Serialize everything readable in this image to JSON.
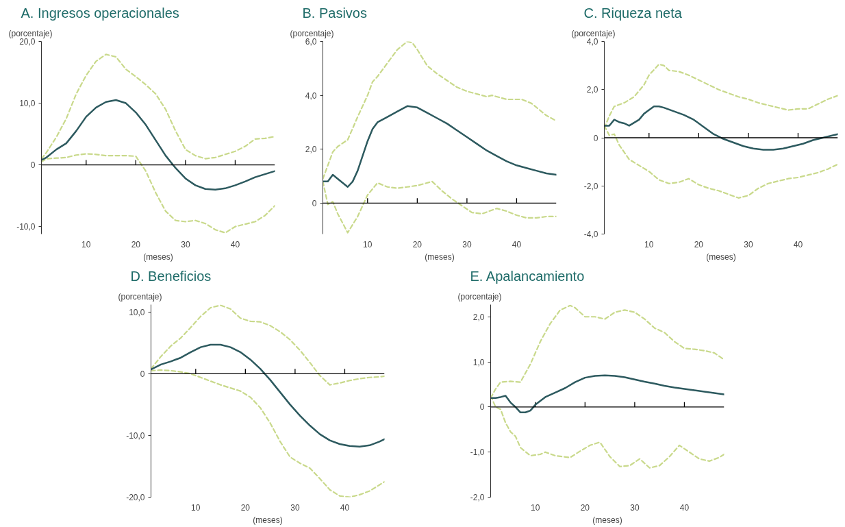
{
  "chart_data": [
    {
      "type": "line",
      "title": "A.     Ingresos operacionales",
      "ylabel": "(porcentaje)",
      "xlabel": "(meses)",
      "xlim": [
        1,
        48
      ],
      "xticks": [
        10,
        20,
        30,
        40
      ],
      "ylim": [
        -11.2,
        20
      ],
      "yticks": [
        {
          "value": -10,
          "label": "-10,0"
        },
        0,
        {
          "value": 10,
          "label": "10,0"
        },
        {
          "value": 20,
          "label": "20,0"
        }
      ],
      "ref_lines": [
        {
          "axis": "y",
          "value": 0,
          "label": null,
          "color": "#000000"
        }
      ],
      "series": [
        {
          "color": "#c9d98b",
          "line_style": "dashed",
          "x": [
            1,
            2,
            4,
            6,
            8,
            10,
            12,
            14,
            16,
            18,
            20,
            22,
            24,
            26,
            28,
            30,
            32,
            34,
            36,
            38,
            40,
            42,
            44,
            46,
            48
          ],
          "values": [
            1.0,
            2.0,
            4.5,
            7.5,
            11.5,
            14.5,
            16.8,
            17.9,
            17.5,
            15.5,
            14.3,
            13.0,
            11.5,
            9.0,
            5.5,
            2.5,
            1.5,
            1.0,
            1.2,
            1.7,
            2.2,
            3.0,
            4.2,
            4.3,
            4.6
          ]
        },
        {
          "color": "#c9d98b",
          "line_style": "dashed",
          "x": [
            1,
            2,
            4,
            6,
            8,
            10,
            12,
            14,
            16,
            18,
            20,
            22,
            24,
            26,
            28,
            30,
            32,
            34,
            36,
            38,
            40,
            42,
            44,
            46,
            48
          ],
          "values": [
            0.5,
            1.0,
            1.1,
            1.2,
            1.6,
            1.8,
            1.7,
            1.5,
            1.5,
            1.5,
            1.4,
            -1.0,
            -4.5,
            -7.5,
            -9.0,
            -9.2,
            -9.0,
            -9.5,
            -10.5,
            -11.0,
            -10.0,
            -9.6,
            -9.2,
            -8.2,
            -6.6
          ]
        },
        {
          "color": "#2d5a5f",
          "line_style": "solid",
          "x": [
            1,
            2,
            4,
            6,
            8,
            10,
            12,
            14,
            16,
            18,
            20,
            22,
            24,
            26,
            28,
            30,
            32,
            34,
            36,
            38,
            40,
            42,
            44,
            46,
            48
          ],
          "values": [
            0.8,
            1.2,
            2.5,
            3.5,
            5.5,
            7.8,
            9.3,
            10.2,
            10.5,
            10.0,
            8.5,
            6.5,
            4.0,
            1.5,
            -0.5,
            -2.2,
            -3.3,
            -3.9,
            -4.0,
            -3.8,
            -3.3,
            -2.7,
            -2.0,
            -1.5,
            -1.0
          ]
        }
      ]
    },
    {
      "type": "line",
      "title": "B.     Pasivos",
      "ylabel": "(porcentaje)",
      "xlabel": "(meses)",
      "xlim": [
        1,
        48
      ],
      "xticks": [
        10,
        20,
        30,
        40
      ],
      "ylim": [
        -1.15,
        6
      ],
      "yticks": [
        0,
        {
          "value": 2,
          "label": "2,0"
        },
        {
          "value": 4,
          "label": "4,0"
        },
        {
          "value": 6,
          "label": "6,0"
        }
      ],
      "ref_lines": [
        {
          "axis": "y",
          "value": 0,
          "label": null,
          "color": "#000000"
        }
      ],
      "series": [
        {
          "color": "#c9d98b",
          "line_style": "dashed",
          "x": [
            1,
            2,
            3,
            4,
            6,
            8,
            10,
            11,
            12,
            14,
            16,
            18,
            19,
            20,
            22,
            24,
            26,
            28,
            30,
            32,
            34,
            35,
            38,
            41,
            43,
            46,
            48
          ],
          "values": [
            0.9,
            1.4,
            1.9,
            2.1,
            2.35,
            3.2,
            4.0,
            4.5,
            4.7,
            5.2,
            5.7,
            6.0,
            5.95,
            5.7,
            5.1,
            4.8,
            4.55,
            4.3,
            4.15,
            4.05,
            3.95,
            4.0,
            3.85,
            3.85,
            3.7,
            3.25,
            3.05
          ]
        },
        {
          "color": "#c9d98b",
          "line_style": "dashed",
          "x": [
            1,
            2,
            3,
            4,
            6,
            8,
            10,
            12,
            14,
            16,
            18,
            20,
            23,
            25,
            27,
            29,
            31,
            33,
            36,
            38,
            40,
            42,
            44,
            46,
            48
          ],
          "values": [
            0.8,
            -0.05,
            0.05,
            -0.4,
            -1.1,
            -0.5,
            0.3,
            0.75,
            0.6,
            0.55,
            0.6,
            0.65,
            0.8,
            0.45,
            0.15,
            -0.1,
            -0.35,
            -0.4,
            -0.2,
            -0.3,
            -0.45,
            -0.55,
            -0.55,
            -0.5,
            -0.5
          ]
        },
        {
          "color": "#2d5a5f",
          "line_style": "solid",
          "x": [
            1,
            2,
            3,
            4,
            6,
            7,
            8,
            10,
            11,
            12,
            14,
            16,
            18,
            20,
            22,
            24,
            26,
            28,
            30,
            32,
            34,
            36,
            38,
            40,
            42,
            44,
            46,
            48
          ],
          "values": [
            0.8,
            0.8,
            1.05,
            0.9,
            0.6,
            0.8,
            1.2,
            2.3,
            2.75,
            3.0,
            3.2,
            3.4,
            3.6,
            3.55,
            3.35,
            3.15,
            2.95,
            2.7,
            2.45,
            2.2,
            1.95,
            1.75,
            1.55,
            1.4,
            1.3,
            1.2,
            1.1,
            1.05
          ]
        }
      ]
    },
    {
      "type": "line",
      "title": "C.     Riqueza neta",
      "ylabel": "(porcentaje)",
      "xlabel": "(meses)",
      "xlim": [
        1,
        48
      ],
      "xticks": [
        10,
        20,
        30,
        40
      ],
      "ylim": [
        -4,
        4
      ],
      "yticks": [
        {
          "value": -4,
          "label": "-4,0"
        },
        {
          "value": -2,
          "label": "-2,0"
        },
        0,
        {
          "value": 2,
          "label": "2,0"
        },
        {
          "value": 4,
          "label": "4,0"
        }
      ],
      "ref_lines": [
        {
          "axis": "y",
          "value": 0,
          "label": null,
          "color": "#000000"
        }
      ],
      "series": [
        {
          "color": "#c9d98b",
          "line_style": "dashed",
          "x": [
            1,
            2,
            3,
            5,
            7,
            9,
            10,
            12,
            13,
            14,
            16,
            18,
            20,
            22,
            24,
            26,
            28,
            30,
            32,
            34,
            36,
            38,
            40,
            42,
            44,
            46,
            48
          ],
          "values": [
            0.4,
            0.9,
            1.3,
            1.45,
            1.7,
            2.2,
            2.6,
            3.05,
            3.0,
            2.8,
            2.75,
            2.6,
            2.4,
            2.2,
            2.0,
            1.85,
            1.7,
            1.6,
            1.45,
            1.35,
            1.25,
            1.15,
            1.2,
            1.2,
            1.4,
            1.6,
            1.75
          ]
        },
        {
          "color": "#c9d98b",
          "line_style": "dashed",
          "x": [
            1,
            2,
            3,
            4,
            6,
            8,
            10,
            12,
            14,
            16,
            18,
            20,
            22,
            24,
            26,
            28,
            30,
            32,
            34,
            36,
            38,
            40,
            42,
            44,
            46,
            48
          ],
          "values": [
            0.5,
            0.1,
            0.15,
            -0.3,
            -0.9,
            -1.15,
            -1.4,
            -1.75,
            -1.9,
            -1.85,
            -1.7,
            -1.95,
            -2.1,
            -2.2,
            -2.35,
            -2.5,
            -2.4,
            -2.1,
            -1.9,
            -1.8,
            -1.7,
            -1.65,
            -1.55,
            -1.45,
            -1.3,
            -1.1
          ]
        },
        {
          "color": "#2d5a5f",
          "line_style": "solid",
          "x": [
            1,
            2,
            3,
            4,
            5,
            6,
            8,
            9,
            10,
            11,
            12,
            13,
            15,
            17,
            19,
            21,
            23,
            25,
            27,
            29,
            31,
            33,
            35,
            37,
            39,
            41,
            43,
            45,
            47,
            48
          ],
          "values": [
            0.5,
            0.5,
            0.75,
            0.65,
            0.6,
            0.5,
            0.75,
            1.0,
            1.15,
            1.3,
            1.3,
            1.25,
            1.1,
            0.95,
            0.75,
            0.45,
            0.15,
            -0.05,
            -0.2,
            -0.35,
            -0.45,
            -0.5,
            -0.5,
            -0.45,
            -0.35,
            -0.25,
            -0.1,
            0.0,
            0.1,
            0.15
          ]
        }
      ]
    },
    {
      "type": "line",
      "title": "D.     Beneficios",
      "ylabel": "(porcentaje)",
      "xlabel": "(meses)",
      "xlim": [
        1,
        48
      ],
      "xticks": [
        10,
        20,
        30,
        40
      ],
      "ylim": [
        -20,
        11.2
      ],
      "yticks": [
        {
          "value": -20,
          "label": "-20,0"
        },
        {
          "value": -10,
          "label": "-10,0"
        },
        0,
        {
          "value": 10,
          "label": "10,0"
        }
      ],
      "ref_lines": [
        {
          "axis": "y",
          "value": 0,
          "label": null,
          "color": "#000000"
        }
      ],
      "series": [
        {
          "color": "#c9d98b",
          "line_style": "dashed",
          "x": [
            1,
            3,
            5,
            7,
            9,
            11,
            13,
            15,
            17,
            19,
            21,
            23,
            25,
            27,
            29,
            31,
            33,
            35,
            37,
            39,
            41,
            43,
            45,
            47,
            48
          ],
          "values": [
            0.8,
            2.8,
            4.5,
            5.8,
            7.5,
            9.3,
            10.7,
            11.1,
            10.5,
            9.0,
            8.5,
            8.4,
            7.8,
            6.8,
            5.5,
            3.8,
            1.8,
            -0.3,
            -1.8,
            -1.5,
            -1.1,
            -0.8,
            -0.6,
            -0.5,
            -0.4
          ]
        },
        {
          "color": "#c9d98b",
          "line_style": "dashed",
          "x": [
            1,
            3,
            5,
            7,
            9,
            11,
            13,
            15,
            17,
            19,
            21,
            23,
            25,
            27,
            29,
            31,
            33,
            35,
            37,
            39,
            41,
            43,
            45,
            47,
            48
          ],
          "values": [
            0.5,
            0.6,
            0.5,
            0.3,
            0.0,
            -0.6,
            -1.2,
            -1.8,
            -2.3,
            -2.8,
            -3.8,
            -5.5,
            -8.0,
            -11.0,
            -13.5,
            -14.5,
            -15.3,
            -17.0,
            -18.8,
            -19.8,
            -20.0,
            -19.6,
            -19.0,
            -18.0,
            -17.5
          ]
        },
        {
          "color": "#2d5a5f",
          "line_style": "solid",
          "x": [
            1,
            3,
            5,
            7,
            9,
            11,
            13,
            15,
            17,
            19,
            21,
            23,
            25,
            27,
            29,
            31,
            33,
            35,
            37,
            39,
            41,
            43,
            45,
            47,
            48
          ],
          "values": [
            0.7,
            1.5,
            2.0,
            2.6,
            3.5,
            4.3,
            4.7,
            4.7,
            4.3,
            3.5,
            2.3,
            0.8,
            -1.0,
            -3.0,
            -5.0,
            -6.8,
            -8.4,
            -9.8,
            -10.8,
            -11.4,
            -11.7,
            -11.8,
            -11.6,
            -11.0,
            -10.6
          ]
        }
      ]
    },
    {
      "type": "line",
      "title": "E.     Apalancamiento",
      "ylabel": "(porcentaje)",
      "xlabel": "(meses)",
      "xlim": [
        1,
        48
      ],
      "xticks": [
        10,
        20,
        30,
        40
      ],
      "ylim": [
        -2,
        2.27
      ],
      "yticks": [
        {
          "value": -2,
          "label": "-2,0"
        },
        {
          "value": -1,
          "label": "-1,0"
        },
        0,
        {
          "value": 1,
          "label": "1,0"
        },
        {
          "value": 2,
          "label": "2,0"
        }
      ],
      "ref_lines": [
        {
          "axis": "y",
          "value": 0,
          "label": null,
          "color": "#000000"
        }
      ],
      "series": [
        {
          "color": "#c9d98b",
          "line_style": "dashed",
          "x": [
            1,
            2,
            3,
            5,
            7,
            9,
            11,
            13,
            15,
            17,
            18,
            20,
            22,
            24,
            26,
            28,
            30,
            32,
            34,
            36,
            38,
            40,
            42,
            44,
            46,
            48
          ],
          "values": [
            0.2,
            0.4,
            0.55,
            0.57,
            0.55,
            0.95,
            1.45,
            1.85,
            2.15,
            2.25,
            2.2,
            2.0,
            2.0,
            1.95,
            2.1,
            2.15,
            2.1,
            1.95,
            1.75,
            1.65,
            1.45,
            1.3,
            1.28,
            1.25,
            1.2,
            1.05
          ]
        },
        {
          "color": "#c9d98b",
          "line_style": "dashed",
          "x": [
            1,
            2,
            3,
            4,
            5,
            6,
            7,
            9,
            11,
            12,
            14,
            17,
            19,
            21,
            23,
            25,
            27,
            29,
            31,
            33,
            35,
            37,
            39,
            41,
            43,
            45,
            47,
            48
          ],
          "values": [
            0.25,
            0.0,
            -0.05,
            -0.35,
            -0.55,
            -0.65,
            -0.9,
            -1.08,
            -1.05,
            -1.0,
            -1.08,
            -1.12,
            -0.98,
            -0.85,
            -0.78,
            -1.1,
            -1.32,
            -1.3,
            -1.15,
            -1.35,
            -1.3,
            -1.1,
            -0.85,
            -1.0,
            -1.15,
            -1.2,
            -1.12,
            -1.05
          ]
        },
        {
          "color": "#2d5a5f",
          "line_style": "solid",
          "x": [
            1,
            2,
            3,
            4,
            5,
            6,
            7,
            8,
            9,
            10,
            12,
            14,
            16,
            18,
            20,
            22,
            24,
            26,
            28,
            30,
            32,
            34,
            36,
            38,
            40,
            42,
            44,
            46,
            48
          ],
          "values": [
            0.2,
            0.2,
            0.22,
            0.25,
            0.1,
            0.0,
            -0.12,
            -0.12,
            -0.08,
            0.05,
            0.22,
            0.32,
            0.42,
            0.55,
            0.65,
            0.69,
            0.7,
            0.69,
            0.66,
            0.61,
            0.56,
            0.52,
            0.47,
            0.43,
            0.4,
            0.37,
            0.34,
            0.31,
            0.28
          ]
        }
      ]
    }
  ]
}
